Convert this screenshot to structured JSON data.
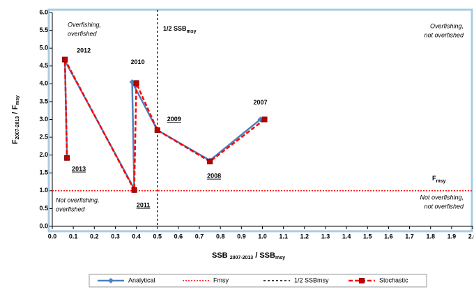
{
  "chart_data": {
    "type": "line",
    "xlabel": [
      "SSB ",
      "2007-2013",
      " / SSB",
      "msy"
    ],
    "ylabel": [
      "F",
      "2007-2013",
      " / F",
      "msy"
    ],
    "xlim": [
      0,
      2
    ],
    "ylim": [
      0,
      6
    ],
    "xticks": [
      {
        "value": 0,
        "label": "0.0"
      },
      {
        "value": 0.1,
        "label": "0.1"
      },
      {
        "value": 0.2,
        "label": "0.2"
      },
      {
        "value": 0.3,
        "label": "0.3"
      },
      {
        "value": 0.4,
        "label": "0.4"
      },
      {
        "value": 0.5,
        "label": "0.5"
      },
      {
        "value": 0.6,
        "label": "0.6"
      },
      {
        "value": 0.7,
        "label": "0.7"
      },
      {
        "value": 0.8,
        "label": "0.8"
      },
      {
        "value": 0.9,
        "label": "0.9"
      },
      {
        "value": 1,
        "label": "1.0"
      },
      {
        "value": 1.1,
        "label": "1.1"
      },
      {
        "value": 1.2,
        "label": "1.2"
      },
      {
        "value": 1.3,
        "label": "1.3"
      },
      {
        "value": 1.4,
        "label": "1.4"
      },
      {
        "value": 1.5,
        "label": "1.5"
      },
      {
        "value": 1.6,
        "label": "1.6"
      },
      {
        "value": 1.7,
        "label": "1.7"
      },
      {
        "value": 1.8,
        "label": "1.8"
      },
      {
        "value": 1.9,
        "label": "1.9"
      },
      {
        "value": 2,
        "label": "2.0"
      }
    ],
    "yticks": [
      {
        "value": 0,
        "label": "0.0"
      },
      {
        "value": 0.5,
        "label": "0.5"
      },
      {
        "value": 1,
        "label": "1.0"
      },
      {
        "value": 1.5,
        "label": "1.5"
      },
      {
        "value": 2,
        "label": "2.0"
      },
      {
        "value": 2.5,
        "label": "2.5"
      },
      {
        "value": 3,
        "label": "3.0"
      },
      {
        "value": 3.5,
        "label": "3.5"
      },
      {
        "value": 4,
        "label": "4.0"
      },
      {
        "value": 4.5,
        "label": "4.5"
      },
      {
        "value": 5,
        "label": "5.0"
      },
      {
        "value": 5.5,
        "label": "5.5"
      },
      {
        "value": 6,
        "label": "6.0"
      }
    ],
    "years": [
      "2007",
      "2008",
      "2009",
      "2010",
      "2011",
      "2012",
      "2013"
    ],
    "series": [
      {
        "name": "Analytical",
        "color": "#4f81bd",
        "marker": "diamond",
        "dash": false,
        "x": [
          0.99,
          0.75,
          0.5,
          0.38,
          0.39,
          0.06,
          0.07
        ],
        "values": [
          3.0,
          1.85,
          2.7,
          4.05,
          1.05,
          4.65,
          1.95
        ]
      },
      {
        "name": "Stochastic",
        "color": "#ff0000",
        "marker": "square",
        "dash": true,
        "x": [
          1.01,
          0.75,
          0.5,
          0.4,
          0.39,
          0.06,
          0.07
        ],
        "values": [
          3.0,
          1.82,
          2.7,
          4.02,
          1.02,
          4.68,
          1.92
        ]
      }
    ],
    "reference_lines": [
      {
        "name": "Fmsy",
        "axis": "y",
        "value": 1,
        "color": "#ff0000"
      },
      {
        "name": "1/2 SSBmsy",
        "axis": "x",
        "value": 0.5,
        "color": "#000000"
      }
    ],
    "annotations": {
      "half_ssb": [
        "1/2 SSB",
        "msy"
      ],
      "fmsy": [
        "F",
        "msy"
      ],
      "top_left": [
        "Overfishing,",
        "overfished"
      ],
      "top_right": [
        "Overfishing,",
        "not overfished"
      ],
      "bottom_left": [
        "Not overfishing,",
        "overfished"
      ],
      "bottom_right": [
        "Not overfishing,",
        "not overfished"
      ]
    }
  }
}
